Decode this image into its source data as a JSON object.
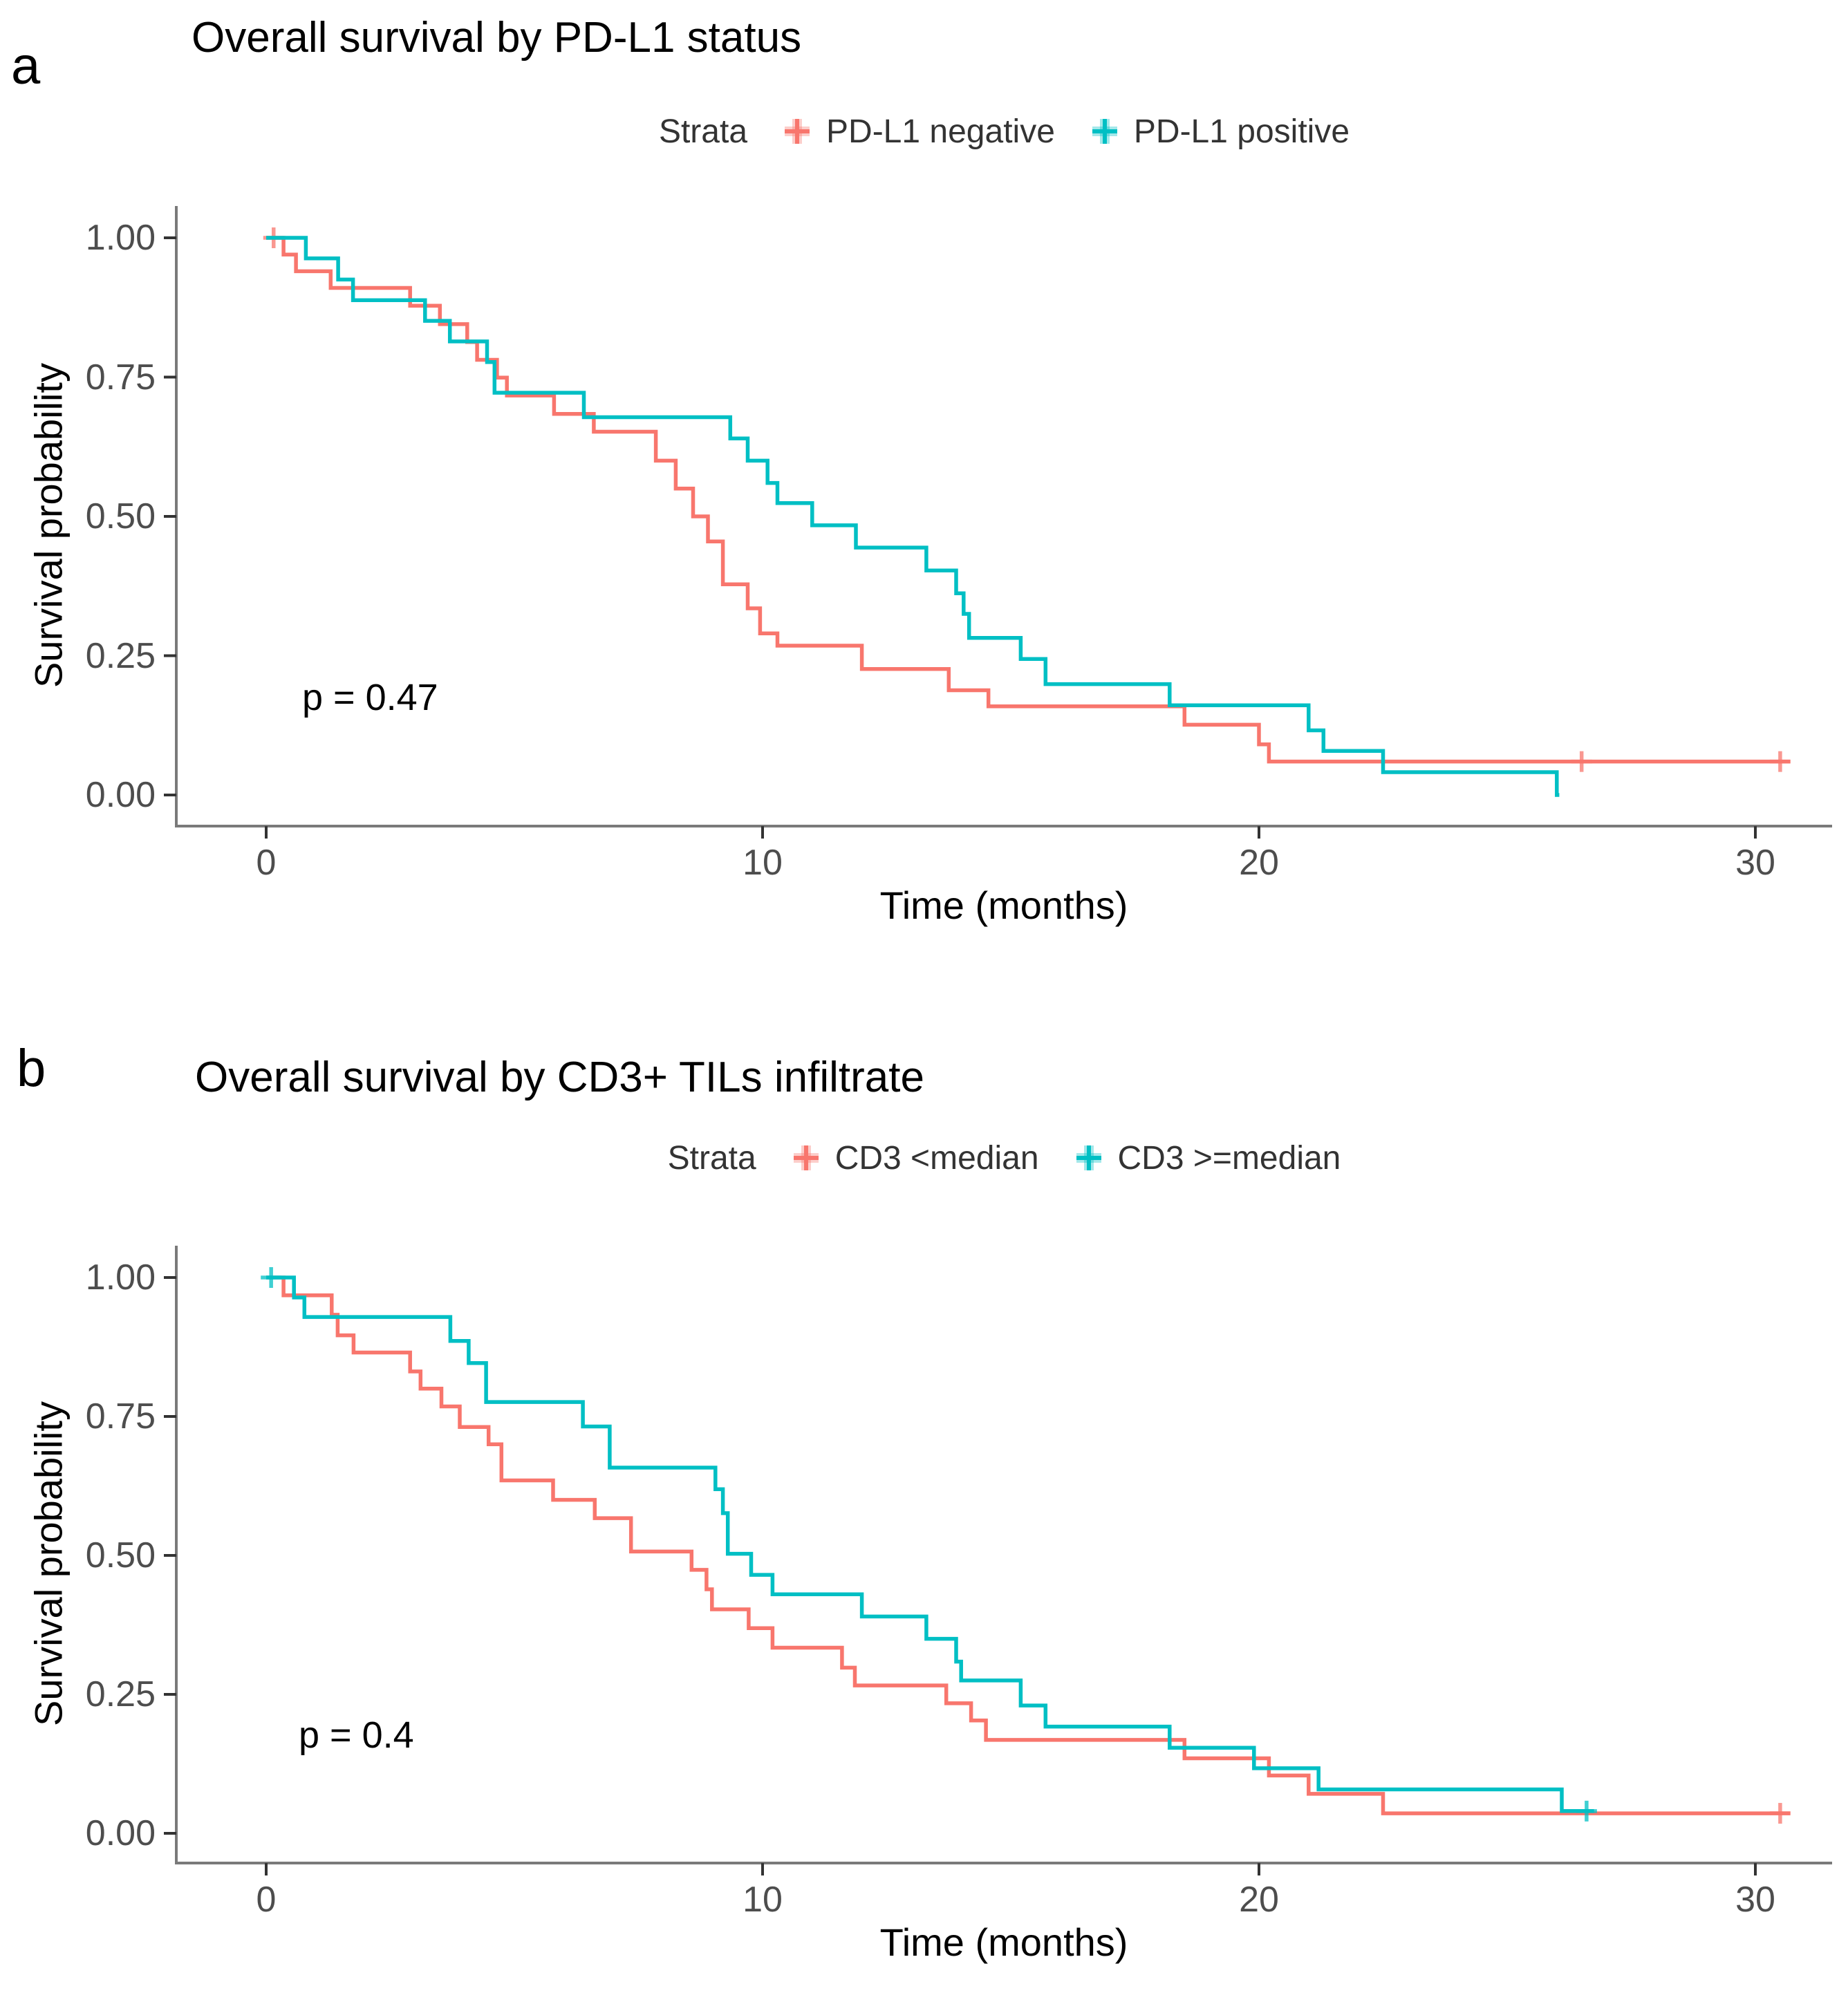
{
  "panel_labels": [
    "a",
    "b"
  ],
  "chart_data": [
    {
      "type": "line",
      "subtype": "kaplan-meier-step",
      "title": "Overall survival by PD-L1 status",
      "xlabel": "Time (months)",
      "ylabel": "Survival probability",
      "pvalue": "p = 0.47",
      "legend_title": "Strata",
      "legend_position": "top",
      "grid": false,
      "xlim": [
        0,
        31
      ],
      "ylim": [
        0,
        1
      ],
      "x_ticks": [
        0,
        10,
        20,
        30
      ],
      "y_ticks": [
        1.0,
        0.75,
        0.5,
        0.25,
        0.0
      ],
      "x_tick_labels": [
        "0",
        "10",
        "20",
        "30"
      ],
      "y_tick_labels": [
        "1.00",
        "0.75",
        "0.50",
        "0.25",
        "0.00"
      ],
      "series": [
        {
          "name": "PD-L1 negative",
          "color": "#F8766D",
          "points": [
            [
              0,
              1.0
            ],
            [
              0.35,
              0.97
            ],
            [
              0.6,
              0.94
            ],
            [
              1.3,
              0.91
            ],
            [
              2.9,
              0.878
            ],
            [
              3.5,
              0.845
            ],
            [
              4.05,
              0.813
            ],
            [
              4.25,
              0.781
            ],
            [
              4.65,
              0.749
            ],
            [
              4.85,
              0.717
            ],
            [
              5.8,
              0.684
            ],
            [
              6.6,
              0.652
            ],
            [
              7.85,
              0.6
            ],
            [
              8.25,
              0.55
            ],
            [
              8.6,
              0.5
            ],
            [
              8.9,
              0.455
            ],
            [
              9.2,
              0.378
            ],
            [
              9.7,
              0.335
            ],
            [
              9.95,
              0.29
            ],
            [
              10.3,
              0.268
            ],
            [
              12.0,
              0.226
            ],
            [
              13.75,
              0.188
            ],
            [
              14.55,
              0.159
            ],
            [
              18.5,
              0.126
            ],
            [
              20.0,
              0.091
            ],
            [
              20.2,
              0.06
            ]
          ],
          "end": 30.7,
          "censors": [
            [
              0.15,
              1.0
            ],
            [
              26.5,
              0.06
            ],
            [
              30.5,
              0.06
            ]
          ]
        },
        {
          "name": "PD-L1 positive",
          "color": "#00BFC4",
          "points": [
            [
              0,
              1.0
            ],
            [
              0.8,
              0.963
            ],
            [
              1.45,
              0.925
            ],
            [
              1.75,
              0.888
            ],
            [
              3.2,
              0.851
            ],
            [
              3.7,
              0.814
            ],
            [
              4.45,
              0.777
            ],
            [
              4.6,
              0.722
            ],
            [
              6.4,
              0.678
            ],
            [
              9.35,
              0.64
            ],
            [
              9.7,
              0.6
            ],
            [
              10.1,
              0.56
            ],
            [
              10.3,
              0.524
            ],
            [
              11.0,
              0.484
            ],
            [
              11.88,
              0.444
            ],
            [
              13.3,
              0.403
            ],
            [
              13.9,
              0.362
            ],
            [
              14.05,
              0.325
            ],
            [
              14.16,
              0.282
            ],
            [
              15.2,
              0.244
            ],
            [
              15.7,
              0.199
            ],
            [
              18.2,
              0.161
            ],
            [
              21.0,
              0.116
            ],
            [
              21.3,
              0.079
            ],
            [
              22.5,
              0.041
            ],
            [
              26.0,
              0.0
            ]
          ],
          "end": 26.05,
          "censors": []
        }
      ]
    },
    {
      "type": "line",
      "subtype": "kaplan-meier-step",
      "title": "Overall survival by CD3+ TILs infiltrate",
      "xlabel": "Time (months)",
      "ylabel": "Survival probability",
      "pvalue": "p = 0.4",
      "legend_title": "Strata",
      "legend_position": "top",
      "grid": false,
      "xlim": [
        0,
        31
      ],
      "ylim": [
        0,
        1
      ],
      "x_ticks": [
        0,
        10,
        20,
        30
      ],
      "y_ticks": [
        1.0,
        0.75,
        0.5,
        0.25,
        0.0
      ],
      "x_tick_labels": [
        "0",
        "10",
        "20",
        "30"
      ],
      "y_tick_labels": [
        "1.00",
        "0.75",
        "0.50",
        "0.25",
        "0.00"
      ],
      "series": [
        {
          "name": "CD3 <median",
          "color": "#F8766D",
          "points": [
            [
              0,
              1.0
            ],
            [
              0.35,
              0.968
            ],
            [
              1.32,
              0.933
            ],
            [
              1.44,
              0.896
            ],
            [
              1.76,
              0.865
            ],
            [
              2.9,
              0.831
            ],
            [
              3.11,
              0.8
            ],
            [
              3.53,
              0.768
            ],
            [
              3.9,
              0.731
            ],
            [
              4.48,
              0.7
            ],
            [
              4.74,
              0.635
            ],
            [
              5.78,
              0.6
            ],
            [
              6.62,
              0.567
            ],
            [
              7.35,
              0.507
            ],
            [
              8.57,
              0.474
            ],
            [
              8.87,
              0.439
            ],
            [
              8.98,
              0.403
            ],
            [
              9.72,
              0.369
            ],
            [
              10.2,
              0.334
            ],
            [
              11.6,
              0.298
            ],
            [
              11.86,
              0.266
            ],
            [
              13.7,
              0.234
            ],
            [
              14.2,
              0.203
            ],
            [
              14.5,
              0.168
            ],
            [
              18.5,
              0.135
            ],
            [
              20.2,
              0.104
            ],
            [
              21.0,
              0.071
            ],
            [
              22.5,
              0.036
            ]
          ],
          "end": 30.7,
          "censors": [
            [
              30.5,
              0.036
            ]
          ]
        },
        {
          "name": "CD3 >=median",
          "color": "#00BFC4",
          "points": [
            [
              0,
              1.0
            ],
            [
              0.56,
              0.964
            ],
            [
              0.77,
              0.929
            ],
            [
              3.71,
              0.886
            ],
            [
              4.08,
              0.846
            ],
            [
              4.43,
              0.776
            ],
            [
              6.38,
              0.732
            ],
            [
              6.92,
              0.658
            ],
            [
              9.05,
              0.619
            ],
            [
              9.2,
              0.576
            ],
            [
              9.3,
              0.503
            ],
            [
              9.77,
              0.465
            ],
            [
              10.2,
              0.43
            ],
            [
              12.0,
              0.39
            ],
            [
              13.3,
              0.35
            ],
            [
              13.9,
              0.309
            ],
            [
              14.0,
              0.275
            ],
            [
              15.2,
              0.23
            ],
            [
              15.7,
              0.192
            ],
            [
              18.2,
              0.154
            ],
            [
              19.9,
              0.117
            ],
            [
              21.2,
              0.079
            ],
            [
              26.1,
              0.04
            ]
          ],
          "end": 26.75,
          "censors": [
            [
              0.1,
              1.0
            ],
            [
              26.6,
              0.04
            ]
          ]
        }
      ]
    }
  ]
}
